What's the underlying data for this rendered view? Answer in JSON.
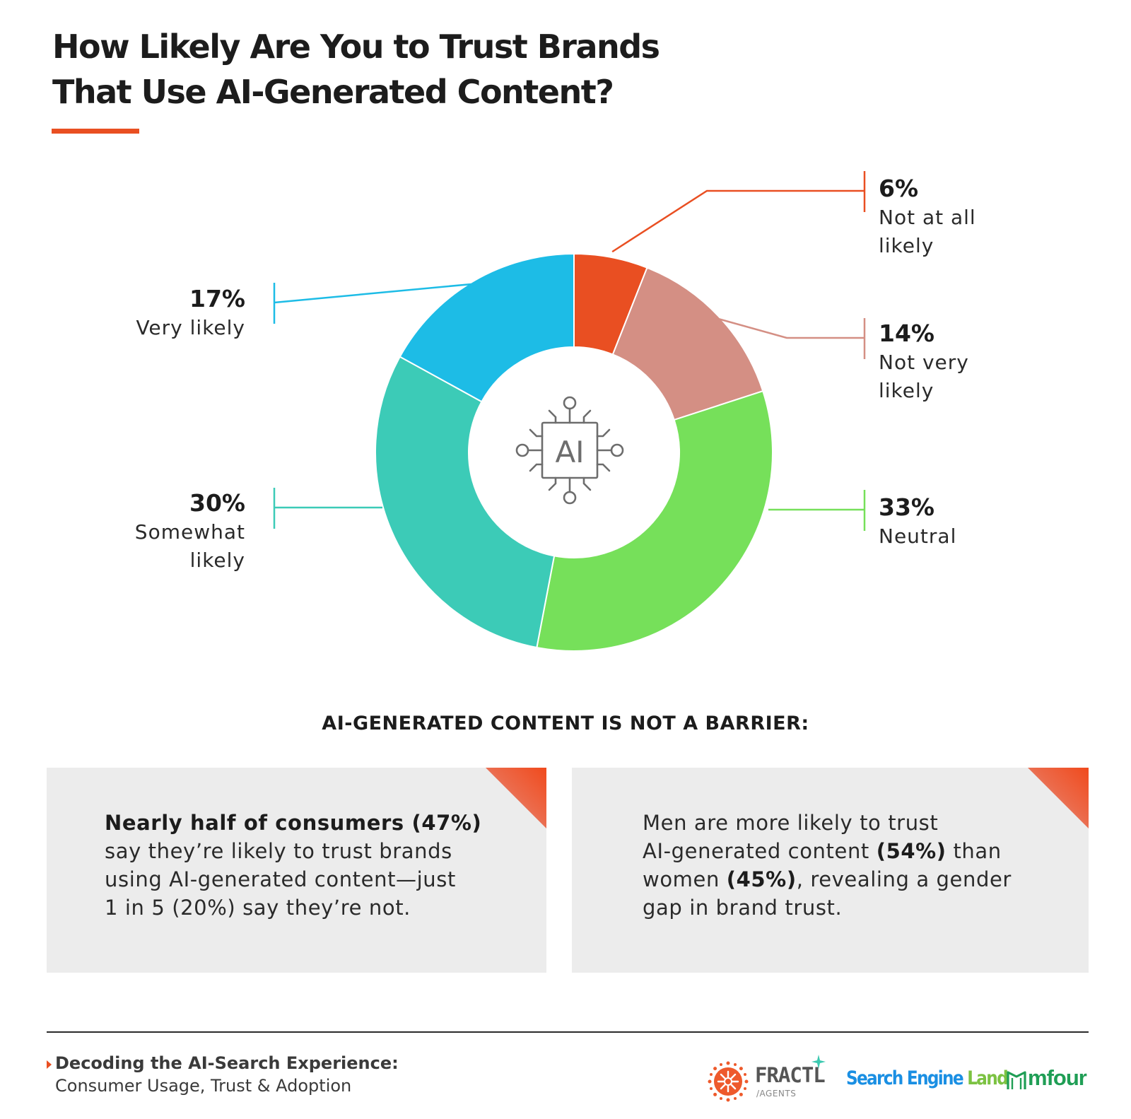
{
  "title_lines": [
    "How Likely Are You to Trust Brands",
    "That Use AI-Generated Content?"
  ],
  "chart_data": {
    "type": "pie",
    "variant": "donut",
    "title": "How Likely Are You to Trust Brands That Use AI-Generated Content?",
    "center_icon": "ai-chip-icon",
    "center_icon_text": "AI",
    "slices": [
      {
        "label": "Not at all likely",
        "pct_label": "6%",
        "value": 6,
        "color": "#e94f22"
      },
      {
        "label": "Not very likely",
        "pct_label": "14%",
        "value": 14,
        "color": "#d48f84"
      },
      {
        "label": "Neutral",
        "pct_label": "33%",
        "value": 33,
        "color": "#76e05a"
      },
      {
        "label": "Somewhat likely",
        "pct_label": "30%",
        "value": 30,
        "color": "#3ccbb7"
      },
      {
        "label": "Very likely",
        "pct_label": "17%",
        "value": 17,
        "color": "#1dbce6"
      }
    ]
  },
  "labels": {
    "not_at_all": {
      "pct": "6%",
      "line1": "Not at all",
      "line2": "likely"
    },
    "not_very": {
      "pct": "14%",
      "line1": "Not very",
      "line2": "likely"
    },
    "neutral": {
      "pct": "33%",
      "line1": "Neutral"
    },
    "somewhat": {
      "pct": "30%",
      "line1": "Somewhat",
      "line2": "likely"
    },
    "very": {
      "pct": "17%",
      "line1": "Very likely"
    }
  },
  "section_heading": "AI-GENERATED CONTENT IS NOT A BARRIER:",
  "cards": [
    {
      "lines": [
        [
          {
            "t": "Nearly half of consumers (47%)",
            "b": true
          }
        ],
        [
          {
            "t": "say they’re likely to trust brands",
            "b": false
          }
        ],
        [
          {
            "t": "using AI-generated content—just",
            "b": false
          }
        ],
        [
          {
            "t": "1 in 5 (20%) say they’re not.",
            "b": false
          }
        ]
      ]
    },
    {
      "lines": [
        [
          {
            "t": "Men are more likely to trust",
            "b": false
          }
        ],
        [
          {
            "t": "AI-generated content ",
            "b": false
          },
          {
            "t": "(54%)",
            "b": true
          },
          {
            "t": " than",
            "b": false
          }
        ],
        [
          {
            "t": "women ",
            "b": false
          },
          {
            "t": "(45%)",
            "b": true
          },
          {
            "t": ", revealing a gender",
            "b": false
          }
        ],
        [
          {
            "t": "gap in brand trust.",
            "b": false
          }
        ]
      ]
    }
  ],
  "footer": {
    "title": "Decoding the AI-Search Experience:",
    "subtitle": "Consumer Usage, Trust & Adoption"
  },
  "logos": {
    "fractl": {
      "word": "FRACTL",
      "sub": "/AGENTS"
    },
    "search_engine_land": {
      "part1": "Search Engine",
      "part2": "Land"
    },
    "mfour": {
      "word": "mfour"
    }
  },
  "colors": {
    "accent": "#e94f22",
    "card_bg": "#ececec"
  }
}
